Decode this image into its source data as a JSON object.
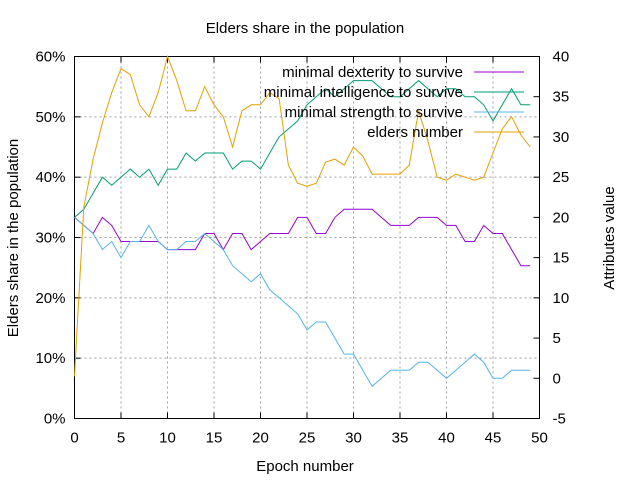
{
  "chart_data": {
    "type": "line",
    "title": "Elders share in the population",
    "xlabel": "Epoch number",
    "ylabel": "Elders share in the population",
    "y2label": "Attributes value",
    "xlim": [
      0,
      50
    ],
    "ylim": [
      0,
      60
    ],
    "y2lim": [
      -5,
      40
    ],
    "xticks": [
      "0",
      "5",
      "10",
      "15",
      "20",
      "25",
      "30",
      "35",
      "40",
      "45",
      "50"
    ],
    "yticks": [
      "0%",
      "10%",
      "20%",
      "30%",
      "40%",
      "50%",
      "60%"
    ],
    "y2ticks": [
      "-5",
      "0",
      "5",
      "10",
      "15",
      "20",
      "25",
      "30",
      "35",
      "40"
    ],
    "grid": true,
    "legend_position": "top-right",
    "series": [
      {
        "name": "minimal dexterity to survive",
        "color": "#9400d3",
        "axis": "y2",
        "x": [
          0,
          1,
          2,
          3,
          4,
          5,
          6,
          7,
          8,
          9,
          10,
          11,
          12,
          13,
          14,
          15,
          16,
          17,
          18,
          19,
          20,
          21,
          22,
          23,
          24,
          25,
          26,
          27,
          28,
          29,
          30,
          31,
          32,
          33,
          34,
          35,
          36,
          37,
          38,
          39,
          40,
          41,
          42,
          43,
          44,
          45,
          46,
          47,
          48,
          49
        ],
        "values": [
          20,
          19,
          18,
          20,
          19,
          17,
          17,
          17,
          17,
          17,
          16,
          16,
          16,
          16,
          18,
          18,
          16,
          18,
          18,
          16,
          17,
          18,
          18,
          18,
          20,
          20,
          18,
          18,
          20,
          21,
          21,
          21,
          21,
          20,
          19,
          19,
          19,
          20,
          20,
          20,
          19,
          19,
          17,
          17,
          19,
          18,
          18,
          16,
          14,
          14
        ]
      },
      {
        "name": "minimal intelligence to survive",
        "color": "#009e73",
        "axis": "y2",
        "x": [
          0,
          1,
          2,
          3,
          4,
          5,
          6,
          7,
          8,
          9,
          10,
          11,
          12,
          13,
          14,
          15,
          16,
          17,
          18,
          19,
          20,
          21,
          22,
          23,
          24,
          25,
          26,
          27,
          28,
          29,
          30,
          31,
          32,
          33,
          34,
          35,
          36,
          37,
          38,
          39,
          40,
          41,
          42,
          43,
          44,
          45,
          46,
          47,
          48,
          49
        ],
        "values": [
          20,
          21,
          23,
          25,
          24,
          25,
          26,
          25,
          26,
          24,
          26,
          26,
          28,
          27,
          28,
          28,
          28,
          26,
          27,
          27,
          26,
          28,
          30,
          31,
          32,
          34,
          35,
          36,
          35,
          36,
          37,
          37,
          37,
          36,
          35,
          35,
          36,
          37,
          36,
          35,
          36,
          36,
          35,
          35,
          34,
          32,
          34,
          36,
          34,
          34
        ]
      },
      {
        "name": "minimal strength to survive",
        "color": "#56b4e9",
        "axis": "y2",
        "x": [
          0,
          1,
          2,
          3,
          4,
          5,
          6,
          7,
          8,
          9,
          10,
          11,
          12,
          13,
          14,
          15,
          16,
          17,
          18,
          19,
          20,
          21,
          22,
          23,
          24,
          25,
          26,
          27,
          28,
          29,
          30,
          31,
          32,
          33,
          34,
          35,
          36,
          37,
          38,
          39,
          40,
          41,
          42,
          43,
          44,
          45,
          46,
          47,
          48,
          49
        ],
        "values": [
          20,
          19,
          18,
          16,
          17,
          15,
          17,
          17,
          19,
          17,
          16,
          16,
          17,
          17,
          18,
          17,
          16,
          14,
          13,
          12,
          13,
          11,
          10,
          9,
          8,
          6,
          7,
          7,
          5,
          3,
          3,
          1,
          -1,
          0,
          1,
          1,
          1,
          2,
          2,
          1,
          0,
          1,
          2,
          3,
          2,
          0,
          0,
          1,
          1,
          1
        ]
      },
      {
        "name": "elders number",
        "color": "#e69f00",
        "axis": "y1",
        "x": [
          0,
          1,
          2,
          3,
          4,
          5,
          6,
          7,
          8,
          9,
          10,
          11,
          12,
          13,
          14,
          15,
          16,
          17,
          18,
          19,
          20,
          21,
          22,
          23,
          24,
          25,
          26,
          27,
          28,
          29,
          30,
          31,
          32,
          33,
          34,
          35,
          36,
          37,
          38,
          39,
          40,
          41,
          42,
          43,
          44,
          45,
          46,
          47,
          48,
          49
        ],
        "values": [
          7,
          35,
          43,
          49,
          54,
          58,
          57,
          52,
          50,
          54,
          60,
          56,
          51,
          51,
          55,
          52,
          50,
          45,
          51,
          52,
          52,
          54,
          53,
          42,
          39,
          38.5,
          39,
          42.5,
          43,
          42,
          45,
          43.5,
          40.5,
          40.5,
          40.5,
          40.5,
          42,
          51,
          46,
          40,
          39.5,
          40.5,
          40,
          39.5,
          40,
          44,
          48,
          50,
          47,
          45
        ]
      }
    ]
  }
}
